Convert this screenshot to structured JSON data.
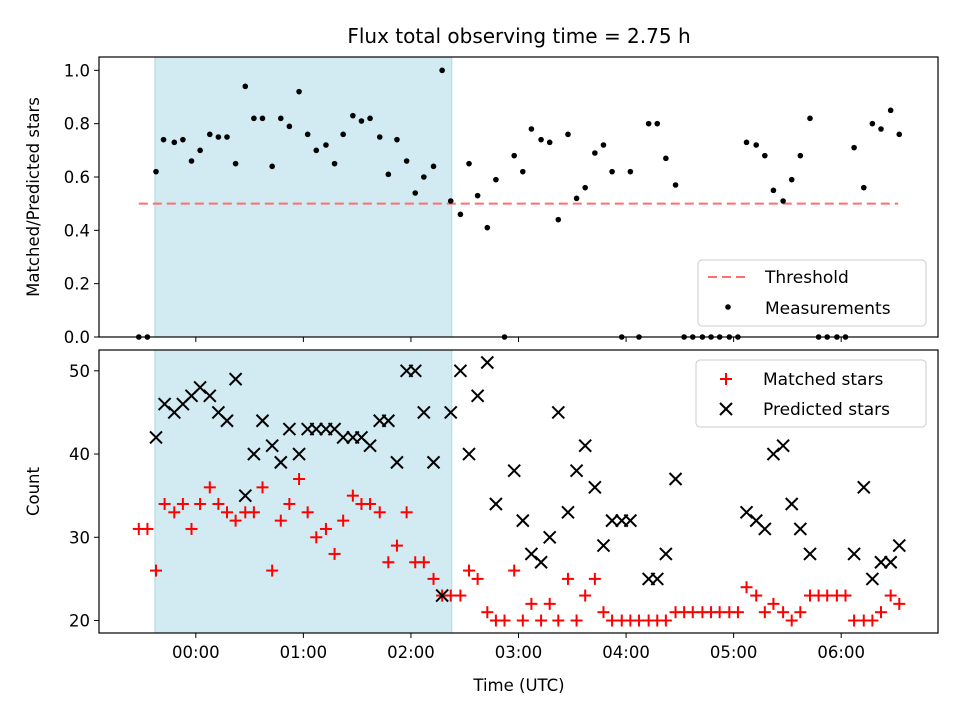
{
  "title": "Flux total observing time = 2.75 h",
  "colors": {
    "shade": "#add8e6",
    "threshold": "#ff6e6e",
    "matched": "#ff0000",
    "predicted": "#000000",
    "measurement": "#000000"
  },
  "chart_data": [
    {
      "type": "scatter",
      "ylabel": "Matched/Predicted stars",
      "xlim": [
        -0.9,
        6.9
      ],
      "ylim": [
        0,
        1.05
      ],
      "yticks": [
        0.0,
        0.2,
        0.4,
        0.6,
        0.8,
        1.0
      ],
      "ytick_labels": [
        "0.0",
        "0.2",
        "0.4",
        "0.6",
        "0.8",
        "1.0"
      ],
      "shaded_region": [
        -0.38,
        2.38
      ],
      "threshold": {
        "name": "Threshold",
        "y": 0.5,
        "x_range": [
          -0.53,
          6.53
        ]
      },
      "legend": {
        "position": "lower-right",
        "entries": [
          "Threshold",
          "Measurements"
        ]
      },
      "series": [
        {
          "name": "Measurements",
          "points": [
            [
              -0.53,
              0.0
            ],
            [
              -0.45,
              0.0
            ],
            [
              -0.37,
              0.62
            ],
            [
              -0.3,
              0.74
            ],
            [
              -0.2,
              0.73
            ],
            [
              -0.12,
              0.74
            ],
            [
              -0.04,
              0.66
            ],
            [
              0.04,
              0.7
            ],
            [
              0.13,
              0.76
            ],
            [
              0.21,
              0.75
            ],
            [
              0.29,
              0.75
            ],
            [
              0.37,
              0.65
            ],
            [
              0.46,
              0.94
            ],
            [
              0.54,
              0.82
            ],
            [
              0.62,
              0.82
            ],
            [
              0.71,
              0.64
            ],
            [
              0.79,
              0.82
            ],
            [
              0.87,
              0.79
            ],
            [
              0.96,
              0.92
            ],
            [
              1.04,
              0.76
            ],
            [
              1.12,
              0.7
            ],
            [
              1.21,
              0.72
            ],
            [
              1.29,
              0.65
            ],
            [
              1.37,
              0.76
            ],
            [
              1.46,
              0.83
            ],
            [
              1.54,
              0.81
            ],
            [
              1.62,
              0.82
            ],
            [
              1.71,
              0.75
            ],
            [
              1.79,
              0.61
            ],
            [
              1.87,
              0.74
            ],
            [
              1.96,
              0.66
            ],
            [
              2.04,
              0.54
            ],
            [
              2.12,
              0.6
            ],
            [
              2.21,
              0.64
            ],
            [
              2.29,
              1.0
            ],
            [
              2.37,
              0.51
            ],
            [
              2.46,
              0.46
            ],
            [
              2.54,
              0.65
            ],
            [
              2.62,
              0.53
            ],
            [
              2.71,
              0.41
            ],
            [
              2.79,
              0.59
            ],
            [
              2.87,
              0.0
            ],
            [
              2.96,
              0.68
            ],
            [
              3.04,
              0.62
            ],
            [
              3.12,
              0.78
            ],
            [
              3.21,
              0.74
            ],
            [
              3.29,
              0.73
            ],
            [
              3.37,
              0.44
            ],
            [
              3.46,
              0.76
            ],
            [
              3.54,
              0.52
            ],
            [
              3.62,
              0.56
            ],
            [
              3.71,
              0.69
            ],
            [
              3.79,
              0.72
            ],
            [
              3.87,
              0.62
            ],
            [
              3.96,
              0.0
            ],
            [
              4.04,
              0.62
            ],
            [
              4.12,
              0.0
            ],
            [
              4.21,
              0.8
            ],
            [
              4.29,
              0.8
            ],
            [
              4.37,
              0.67
            ],
            [
              4.46,
              0.57
            ],
            [
              4.54,
              0.0
            ],
            [
              4.62,
              0.0
            ],
            [
              4.71,
              0.0
            ],
            [
              4.79,
              0.0
            ],
            [
              4.87,
              0.0
            ],
            [
              4.96,
              0.0
            ],
            [
              5.04,
              0.0
            ],
            [
              5.12,
              0.73
            ],
            [
              5.21,
              0.72
            ],
            [
              5.29,
              0.68
            ],
            [
              5.37,
              0.55
            ],
            [
              5.46,
              0.51
            ],
            [
              5.54,
              0.59
            ],
            [
              5.62,
              0.68
            ],
            [
              5.71,
              0.82
            ],
            [
              5.79,
              0.0
            ],
            [
              5.87,
              0.0
            ],
            [
              5.96,
              0.0
            ],
            [
              6.04,
              0.0
            ],
            [
              6.12,
              0.71
            ],
            [
              6.21,
              0.56
            ],
            [
              6.29,
              0.8
            ],
            [
              6.37,
              0.78
            ],
            [
              6.46,
              0.85
            ],
            [
              6.54,
              0.76
            ]
          ]
        }
      ]
    },
    {
      "type": "scatter",
      "xlabel": "Time (UTC)",
      "ylabel": "Count",
      "xlim": [
        -0.9,
        6.9
      ],
      "ylim": [
        18.5,
        52.5
      ],
      "yticks": [
        20,
        30,
        40,
        50
      ],
      "ytick_labels": [
        "20",
        "30",
        "40",
        "50"
      ],
      "xticks": [
        0,
        1,
        2,
        3,
        4,
        5,
        6
      ],
      "xtick_labels": [
        "00:00",
        "01:00",
        "02:00",
        "03:00",
        "04:00",
        "05:00",
        "06:00"
      ],
      "shaded_region": [
        -0.38,
        2.38
      ],
      "legend": {
        "position": "top-right",
        "entries": [
          "Matched stars",
          "Predicted stars"
        ]
      },
      "series": [
        {
          "name": "Matched stars",
          "points": [
            [
              -0.53,
              31
            ],
            [
              -0.45,
              31
            ],
            [
              -0.37,
              26
            ],
            [
              -0.29,
              34
            ],
            [
              -0.2,
              33
            ],
            [
              -0.12,
              34
            ],
            [
              -0.04,
              31
            ],
            [
              0.04,
              34
            ],
            [
              0.13,
              36
            ],
            [
              0.21,
              34
            ],
            [
              0.29,
              33
            ],
            [
              0.37,
              32
            ],
            [
              0.46,
              33
            ],
            [
              0.54,
              33
            ],
            [
              0.62,
              36
            ],
            [
              0.71,
              26
            ],
            [
              0.79,
              32
            ],
            [
              0.87,
              34
            ],
            [
              0.96,
              37
            ],
            [
              1.04,
              33
            ],
            [
              1.12,
              30
            ],
            [
              1.21,
              31
            ],
            [
              1.29,
              28
            ],
            [
              1.37,
              32
            ],
            [
              1.46,
              35
            ],
            [
              1.54,
              34
            ],
            [
              1.62,
              34
            ],
            [
              1.71,
              33
            ],
            [
              1.79,
              27
            ],
            [
              1.87,
              29
            ],
            [
              1.96,
              33
            ],
            [
              2.04,
              27
            ],
            [
              2.12,
              27
            ],
            [
              2.21,
              25
            ],
            [
              2.29,
              23
            ],
            [
              2.37,
              23
            ],
            [
              2.46,
              23
            ],
            [
              2.54,
              26
            ],
            [
              2.62,
              25
            ],
            [
              2.71,
              21
            ],
            [
              2.79,
              20
            ],
            [
              2.87,
              20
            ],
            [
              2.96,
              26
            ],
            [
              3.04,
              20
            ],
            [
              3.12,
              22
            ],
            [
              3.21,
              20
            ],
            [
              3.29,
              22
            ],
            [
              3.37,
              20
            ],
            [
              3.46,
              25
            ],
            [
              3.54,
              20
            ],
            [
              3.62,
              23
            ],
            [
              3.71,
              25
            ],
            [
              3.79,
              21
            ],
            [
              3.87,
              20
            ],
            [
              3.96,
              20
            ],
            [
              4.04,
              20
            ],
            [
              4.12,
              20
            ],
            [
              4.21,
              20
            ],
            [
              4.29,
              20
            ],
            [
              4.37,
              20
            ],
            [
              4.46,
              21
            ],
            [
              4.54,
              21
            ],
            [
              4.62,
              21
            ],
            [
              4.71,
              21
            ],
            [
              4.79,
              21
            ],
            [
              4.87,
              21
            ],
            [
              4.96,
              21
            ],
            [
              5.04,
              21
            ],
            [
              5.12,
              24
            ],
            [
              5.21,
              23
            ],
            [
              5.29,
              21
            ],
            [
              5.37,
              22
            ],
            [
              5.46,
              21
            ],
            [
              5.54,
              20
            ],
            [
              5.62,
              21
            ],
            [
              5.71,
              23
            ],
            [
              5.79,
              23
            ],
            [
              5.87,
              23
            ],
            [
              5.96,
              23
            ],
            [
              6.04,
              23
            ],
            [
              6.12,
              20
            ],
            [
              6.21,
              20
            ],
            [
              6.29,
              20
            ],
            [
              6.37,
              21
            ],
            [
              6.46,
              23
            ],
            [
              6.54,
              22
            ]
          ]
        },
        {
          "name": "Predicted stars",
          "points": [
            [
              -0.37,
              42
            ],
            [
              -0.29,
              46
            ],
            [
              -0.2,
              45
            ],
            [
              -0.12,
              46
            ],
            [
              -0.04,
              47
            ],
            [
              0.04,
              48
            ],
            [
              0.13,
              47
            ],
            [
              0.21,
              45
            ],
            [
              0.29,
              44
            ],
            [
              0.37,
              49
            ],
            [
              0.46,
              35
            ],
            [
              0.54,
              40
            ],
            [
              0.62,
              44
            ],
            [
              0.71,
              41
            ],
            [
              0.79,
              39
            ],
            [
              0.87,
              43
            ],
            [
              0.96,
              40
            ],
            [
              1.04,
              43
            ],
            [
              1.12,
              43
            ],
            [
              1.21,
              43
            ],
            [
              1.29,
              43
            ],
            [
              1.37,
              42
            ],
            [
              1.46,
              42
            ],
            [
              1.54,
              42
            ],
            [
              1.62,
              41
            ],
            [
              1.71,
              44
            ],
            [
              1.79,
              44
            ],
            [
              1.87,
              39
            ],
            [
              1.96,
              50
            ],
            [
              2.04,
              50
            ],
            [
              2.12,
              45
            ],
            [
              2.21,
              39
            ],
            [
              2.29,
              23
            ],
            [
              2.37,
              45
            ],
            [
              2.46,
              50
            ],
            [
              2.54,
              40
            ],
            [
              2.62,
              47
            ],
            [
              2.71,
              51
            ],
            [
              2.79,
              34
            ],
            [
              2.96,
              38
            ],
            [
              3.04,
              32
            ],
            [
              3.12,
              28
            ],
            [
              3.21,
              27
            ],
            [
              3.29,
              30
            ],
            [
              3.37,
              45
            ],
            [
              3.46,
              33
            ],
            [
              3.54,
              38
            ],
            [
              3.62,
              41
            ],
            [
              3.71,
              36
            ],
            [
              3.79,
              29
            ],
            [
              3.87,
              32
            ],
            [
              3.96,
              32
            ],
            [
              4.04,
              32
            ],
            [
              4.21,
              25
            ],
            [
              4.29,
              25
            ],
            [
              4.37,
              28
            ],
            [
              4.46,
              37
            ],
            [
              5.12,
              33
            ],
            [
              5.21,
              32
            ],
            [
              5.29,
              31
            ],
            [
              5.37,
              40
            ],
            [
              5.46,
              41
            ],
            [
              5.54,
              34
            ],
            [
              5.62,
              31
            ],
            [
              5.71,
              28
            ],
            [
              6.12,
              28
            ],
            [
              6.21,
              36
            ],
            [
              6.29,
              25
            ],
            [
              6.37,
              27
            ],
            [
              6.46,
              27
            ],
            [
              6.54,
              29
            ]
          ]
        }
      ]
    }
  ]
}
